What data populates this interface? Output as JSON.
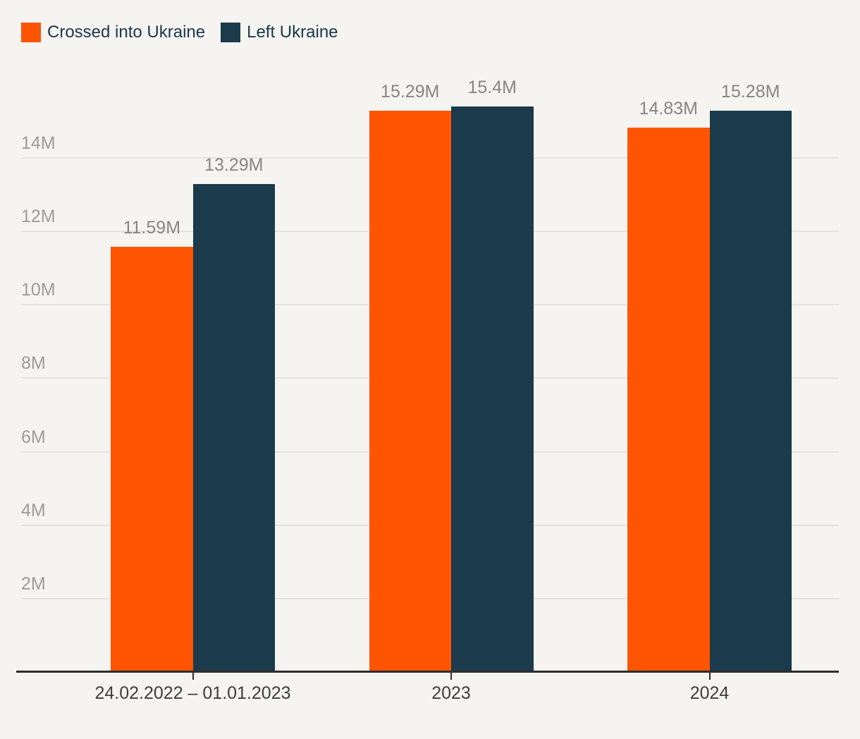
{
  "legend": {
    "position": "top-left",
    "items": [
      {
        "label": "Crossed into Ukraine",
        "color": "#ff5502"
      },
      {
        "label": "Left Ukraine",
        "color": "#1b3a4b"
      }
    ]
  },
  "chart_data": {
    "type": "bar",
    "title": "",
    "categories": [
      "24.02.2022 – 01.01.2023",
      "2023",
      "2024"
    ],
    "series": [
      {
        "name": "Crossed into Ukraine",
        "color": "#ff5502",
        "values": [
          11.59,
          15.29,
          14.83
        ],
        "labels": [
          "11.59M",
          "15.29M",
          "14.83M"
        ]
      },
      {
        "name": "Left Ukraine",
        "color": "#1b3a4b",
        "values": [
          13.29,
          15.4,
          15.28
        ],
        "labels": [
          "13.29M",
          "15.4M",
          "15.28M"
        ]
      }
    ],
    "y_ticks": [
      "2M",
      "4M",
      "6M",
      "8M",
      "10M",
      "12M",
      "14M"
    ],
    "y_tick_values": [
      2,
      4,
      6,
      8,
      10,
      12,
      14
    ],
    "ylim": [
      0,
      16
    ],
    "unit": "M",
    "grid": "horizontal",
    "legend_position": "top-left",
    "colors": {
      "background": "#f5f4f1",
      "gridline": "#e5e3df",
      "axis_line": "#2e2d2b",
      "y_label": "#9d9c99",
      "value_label": "#878683",
      "x_label": "#3f3e3c",
      "legend_text": "#18394b"
    }
  }
}
